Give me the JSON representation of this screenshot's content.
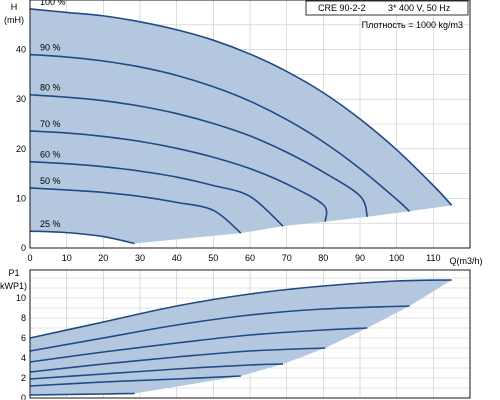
{
  "info_box": {
    "model": "CRE 90-2-2",
    "supply": "3* 400 V, 50 Hz",
    "density": "Плотность = 1000 kg/m3"
  },
  "colors": {
    "area_fill": "#b3c8de",
    "curve": "#1f4a86",
    "grid": "#c8c8c8",
    "frame": "#000000"
  },
  "chart_data": [
    {
      "type": "line",
      "ylabel": "H",
      "yunit": "(mH)",
      "xlabel": "Q(m3/h)",
      "xlim": [
        0,
        120
      ],
      "ylim": [
        0,
        50
      ],
      "grid": true,
      "x_ticks": [
        "0",
        "10",
        "20",
        "30",
        "40",
        "50",
        "60",
        "70",
        "80",
        "90",
        "100",
        "110"
      ],
      "y_ticks": [
        "0",
        "10",
        "20",
        "30",
        "40"
      ],
      "series": [
        {
          "name": "100 %",
          "x": [
            0,
            10,
            20,
            30,
            40,
            50,
            60,
            70,
            80,
            90,
            100,
            110,
            115
          ],
          "y": [
            48.2,
            47.5,
            46.8,
            45.6,
            44.0,
            41.9,
            39.1,
            35.6,
            31.3,
            26.0,
            19.8,
            12.6,
            8.6
          ]
        },
        {
          "name": "90 %",
          "x": [
            0,
            10,
            20,
            30,
            40,
            50,
            60,
            70,
            80,
            90,
            100,
            103.5
          ],
          "y": [
            39.0,
            38.5,
            37.7,
            36.5,
            34.8,
            32.5,
            29.6,
            25.9,
            21.4,
            16.0,
            9.8,
            7.4
          ]
        },
        {
          "name": "80 %",
          "x": [
            0,
            10,
            20,
            30,
            40,
            50,
            60,
            70,
            80,
            90,
            92
          ],
          "y": [
            30.9,
            30.4,
            29.7,
            28.6,
            27.1,
            25.1,
            22.6,
            19.3,
            15.3,
            10.5,
            6.3
          ]
        },
        {
          "name": "70 %",
          "x": [
            0,
            10,
            20,
            30,
            40,
            50,
            60,
            70,
            80,
            80.5
          ],
          "y": [
            23.6,
            23.2,
            22.5,
            21.5,
            20.1,
            18.3,
            16.0,
            12.9,
            8.7,
            5.3
          ]
        },
        {
          "name": "60 %",
          "x": [
            0,
            10,
            20,
            30,
            40,
            50,
            60,
            69
          ],
          "y": [
            17.4,
            17.0,
            16.4,
            15.5,
            14.3,
            12.6,
            10.4,
            4.4
          ]
        },
        {
          "name": "50 %",
          "x": [
            0,
            10,
            20,
            30,
            40,
            50,
            57.5
          ],
          "y": [
            12.1,
            11.7,
            11.2,
            10.4,
            9.2,
            7.6,
            3.0
          ]
        },
        {
          "name": "25 %",
          "x": [
            0,
            10,
            20,
            28.5
          ],
          "y": [
            3.4,
            3.1,
            2.3,
            0.9
          ]
        }
      ]
    },
    {
      "type": "line",
      "ylabel": "P1",
      "yunit": "(kWP1)",
      "xlim": [
        0,
        120
      ],
      "ylim": [
        0,
        12.8
      ],
      "grid": true,
      "y_ticks": [
        "0",
        "2",
        "4",
        "6",
        "8",
        "10"
      ],
      "series": [
        {
          "name": "100 %",
          "x": [
            0,
            20,
            40,
            60,
            80,
            100,
            115
          ],
          "y": [
            6.0,
            7.6,
            9.2,
            10.4,
            11.2,
            11.7,
            11.8
          ]
        },
        {
          "name": "90 %",
          "x": [
            0,
            20,
            40,
            60,
            80,
            103.5
          ],
          "y": [
            4.7,
            6.0,
            7.3,
            8.3,
            8.9,
            9.2
          ]
        },
        {
          "name": "80 %",
          "x": [
            0,
            20,
            40,
            60,
            80,
            92
          ],
          "y": [
            3.6,
            4.6,
            5.5,
            6.3,
            6.8,
            7.0
          ]
        },
        {
          "name": "70 %",
          "x": [
            0,
            20,
            40,
            60,
            80.5
          ],
          "y": [
            2.6,
            3.4,
            4.1,
            4.7,
            5.0
          ]
        },
        {
          "name": "60 %",
          "x": [
            0,
            20,
            40,
            60,
            69
          ],
          "y": [
            1.9,
            2.4,
            2.9,
            3.3,
            3.4
          ]
        },
        {
          "name": "50 %",
          "x": [
            0,
            20,
            40,
            57.5
          ],
          "y": [
            1.2,
            1.6,
            1.9,
            2.2
          ]
        },
        {
          "name": "25 %",
          "x": [
            0,
            10,
            20,
            28.5
          ],
          "y": [
            0.3,
            0.35,
            0.4,
            0.45
          ]
        }
      ]
    }
  ]
}
